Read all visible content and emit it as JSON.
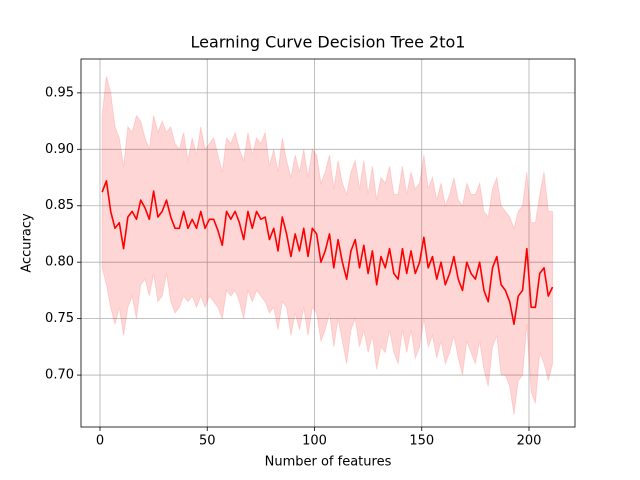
{
  "chart_data": {
    "type": "line",
    "title": "Learning Curve Decision Tree 2to1",
    "x_label": "Number of features",
    "y_label": "Accuracy",
    "x": [
      1,
      3,
      5,
      7,
      9,
      11,
      13,
      15,
      17,
      19,
      21,
      23,
      25,
      27,
      29,
      31,
      33,
      35,
      37,
      39,
      41,
      43,
      45,
      47,
      49,
      51,
      53,
      55,
      57,
      59,
      61,
      63,
      65,
      67,
      69,
      71,
      73,
      75,
      77,
      79,
      81,
      83,
      85,
      87,
      89,
      91,
      93,
      95,
      97,
      99,
      101,
      103,
      105,
      107,
      109,
      111,
      113,
      115,
      117,
      119,
      121,
      123,
      125,
      127,
      129,
      131,
      133,
      135,
      137,
      139,
      141,
      143,
      145,
      147,
      149,
      151,
      153,
      155,
      157,
      159,
      161,
      163,
      165,
      167,
      169,
      171,
      173,
      175,
      177,
      179,
      181,
      183,
      185,
      187,
      189,
      191,
      193,
      195,
      197,
      199,
      201,
      203,
      205,
      207,
      209,
      211
    ],
    "values": [
      0.862,
      0.872,
      0.845,
      0.83,
      0.835,
      0.812,
      0.84,
      0.845,
      0.838,
      0.855,
      0.848,
      0.838,
      0.863,
      0.84,
      0.845,
      0.855,
      0.84,
      0.83,
      0.83,
      0.845,
      0.83,
      0.838,
      0.83,
      0.845,
      0.83,
      0.838,
      0.838,
      0.828,
      0.815,
      0.845,
      0.838,
      0.845,
      0.835,
      0.82,
      0.845,
      0.83,
      0.845,
      0.838,
      0.84,
      0.82,
      0.83,
      0.81,
      0.84,
      0.825,
      0.805,
      0.825,
      0.81,
      0.83,
      0.805,
      0.83,
      0.825,
      0.8,
      0.81,
      0.825,
      0.795,
      0.82,
      0.8,
      0.785,
      0.81,
      0.82,
      0.795,
      0.815,
      0.79,
      0.81,
      0.78,
      0.805,
      0.795,
      0.812,
      0.79,
      0.785,
      0.812,
      0.79,
      0.81,
      0.79,
      0.8,
      0.822,
      0.795,
      0.805,
      0.785,
      0.8,
      0.78,
      0.79,
      0.805,
      0.785,
      0.775,
      0.8,
      0.79,
      0.785,
      0.8,
      0.775,
      0.765,
      0.795,
      0.805,
      0.78,
      0.775,
      0.765,
      0.745,
      0.77,
      0.775,
      0.812,
      0.76,
      0.76,
      0.79,
      0.795,
      0.77,
      0.778
    ],
    "band_upper": [
      0.93,
      0.965,
      0.95,
      0.92,
      0.91,
      0.885,
      0.92,
      0.915,
      0.93,
      0.925,
      0.91,
      0.9,
      0.93,
      0.915,
      0.925,
      0.915,
      0.92,
      0.905,
      0.9,
      0.915,
      0.89,
      0.91,
      0.895,
      0.92,
      0.9,
      0.905,
      0.91,
      0.895,
      0.88,
      0.91,
      0.905,
      0.915,
      0.9,
      0.89,
      0.915,
      0.895,
      0.91,
      0.905,
      0.915,
      0.885,
      0.9,
      0.88,
      0.91,
      0.89,
      0.875,
      0.895,
      0.88,
      0.9,
      0.875,
      0.9,
      0.895,
      0.87,
      0.88,
      0.895,
      0.865,
      0.89,
      0.87,
      0.86,
      0.88,
      0.89,
      0.865,
      0.89,
      0.86,
      0.885,
      0.855,
      0.875,
      0.87,
      0.885,
      0.86,
      0.86,
      0.885,
      0.86,
      0.88,
      0.865,
      0.87,
      0.895,
      0.865,
      0.875,
      0.855,
      0.87,
      0.85,
      0.86,
      0.875,
      0.855,
      0.85,
      0.87,
      0.86,
      0.86,
      0.87,
      0.845,
      0.84,
      0.865,
      0.875,
      0.85,
      0.845,
      0.84,
      0.83,
      0.845,
      0.85,
      0.88,
      0.835,
      0.835,
      0.86,
      0.88,
      0.845,
      0.845
    ],
    "band_lower": [
      0.795,
      0.78,
      0.76,
      0.745,
      0.76,
      0.735,
      0.76,
      0.77,
      0.75,
      0.78,
      0.785,
      0.77,
      0.79,
      0.765,
      0.77,
      0.79,
      0.765,
      0.755,
      0.76,
      0.77,
      0.765,
      0.77,
      0.76,
      0.77,
      0.76,
      0.77,
      0.765,
      0.76,
      0.75,
      0.775,
      0.77,
      0.775,
      0.765,
      0.75,
      0.775,
      0.765,
      0.775,
      0.77,
      0.765,
      0.755,
      0.76,
      0.74,
      0.765,
      0.76,
      0.735,
      0.755,
      0.74,
      0.76,
      0.735,
      0.76,
      0.755,
      0.73,
      0.74,
      0.755,
      0.725,
      0.75,
      0.73,
      0.71,
      0.74,
      0.75,
      0.725,
      0.74,
      0.72,
      0.735,
      0.705,
      0.725,
      0.72,
      0.74,
      0.72,
      0.71,
      0.74,
      0.72,
      0.74,
      0.715,
      0.725,
      0.75,
      0.725,
      0.735,
      0.715,
      0.73,
      0.71,
      0.72,
      0.735,
      0.715,
      0.7,
      0.73,
      0.72,
      0.71,
      0.73,
      0.705,
      0.69,
      0.725,
      0.735,
      0.7,
      0.7,
      0.69,
      0.665,
      0.695,
      0.7,
      0.745,
      0.685,
      0.675,
      0.72,
      0.71,
      0.695,
      0.71
    ],
    "color": "#ff0000",
    "band_color": "#ff0000",
    "xlim": [
      -8.85,
      221.45
    ],
    "ylim": [
      0.654,
      0.98
    ],
    "xticks": [
      0,
      50,
      100,
      150,
      200
    ],
    "yticks": [
      {
        "value": 0.7,
        "label": "0.70"
      },
      0.75,
      {
        "value": 0.8,
        "label": "0.80"
      },
      0.85,
      {
        "value": 0.9,
        "label": "0.90"
      },
      0.95
    ],
    "grid": true
  }
}
